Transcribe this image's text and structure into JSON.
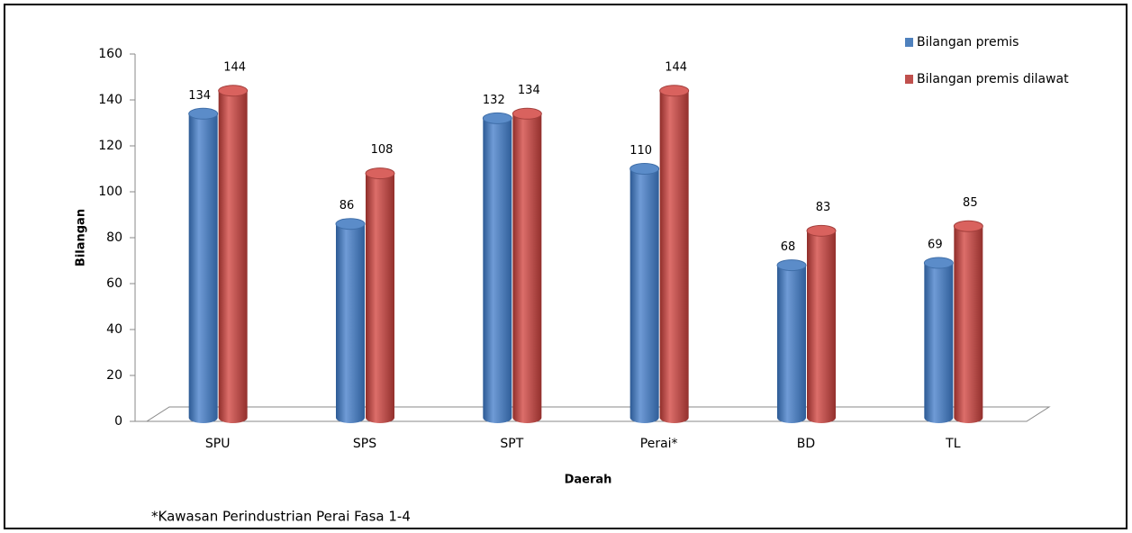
{
  "chart_data": {
    "type": "bar",
    "x_label": "Daerah",
    "y_label": "Bilangan",
    "annotation": "*Kawasan Perindustrian Perai Fasa 1-4",
    "categories": [
      "SPU",
      "SPS",
      "SPT",
      "Perai*",
      "BD",
      "TL"
    ],
    "series": [
      {
        "name": "Bilangan premis",
        "color": "#4f81bd",
        "values": [
          134,
          86,
          132,
          110,
          68,
          69
        ]
      },
      {
        "name": "Bilangan premis dilawat",
        "color": "#c0504d",
        "values": [
          144,
          108,
          134,
          144,
          83,
          85
        ]
      }
    ],
    "ylim": [
      0,
      160
    ],
    "yticks": [
      0,
      20,
      40,
      60,
      80,
      100,
      120,
      140,
      160
    ],
    "grid": false,
    "legend": "top-right"
  }
}
